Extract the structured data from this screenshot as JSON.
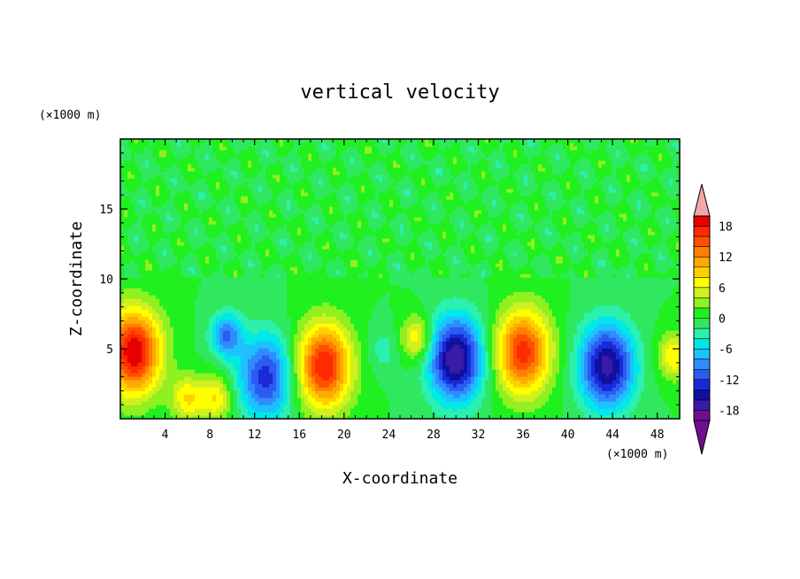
{
  "chart_data": {
    "type": "heatmap",
    "title": "vertical velocity",
    "xlabel": "X-coordinate",
    "ylabel": "Z-coordinate",
    "x_unit": "(×1000 m)",
    "y_unit": "(×1000 m)",
    "xlim": [
      0,
      50
    ],
    "ylim": [
      0,
      20
    ],
    "x_ticks": [
      4,
      8,
      12,
      16,
      20,
      24,
      28,
      32,
      36,
      40,
      44,
      48
    ],
    "y_ticks": [
      5,
      10,
      15
    ],
    "colorbar": {
      "levels": [
        -20,
        -18,
        -16,
        -14,
        -12,
        -10,
        -8,
        -6,
        -4,
        -2,
        0,
        2,
        4,
        6,
        8,
        10,
        12,
        14,
        16,
        18,
        20
      ],
      "labels": [
        18,
        12,
        6,
        0,
        -6,
        -12,
        -18
      ],
      "colors": [
        "#6f0f8f",
        "#3a1aa8",
        "#1010a0",
        "#1a2ad8",
        "#2a5cf0",
        "#2f8cff",
        "#1fc0ff",
        "#00e8e8",
        "#2cf0b0",
        "#30e860",
        "#20f020",
        "#90f020",
        "#d0f020",
        "#ffff00",
        "#ffd000",
        "#ffaa00",
        "#ff8000",
        "#ff5000",
        "#ff2a00",
        "#e80000",
        "#f4a7a7"
      ],
      "extend": "both"
    },
    "features": [
      {
        "x": 1.2,
        "z": 4.8,
        "w": 37
      },
      {
        "x": 6.0,
        "z": 1.5,
        "w": 8
      },
      {
        "x": 8.5,
        "z": 1.5,
        "w": 8
      },
      {
        "x": 9.5,
        "z": 6.0,
        "w": -10
      },
      {
        "x": 13.0,
        "z": 3.0,
        "w": -13
      },
      {
        "x": 18.2,
        "z": 3.8,
        "w": 18
      },
      {
        "x": 23.5,
        "z": 5.0,
        "w": -3
      },
      {
        "x": 26.5,
        "z": 5.8,
        "w": 8
      },
      {
        "x": 30.0,
        "z": 4.3,
        "w": -18
      },
      {
        "x": 36.0,
        "z": 4.8,
        "w": 17
      },
      {
        "x": 43.5,
        "z": 3.8,
        "w": -17
      },
      {
        "x": 49.5,
        "z": 4.5,
        "w": 8
      }
    ]
  }
}
